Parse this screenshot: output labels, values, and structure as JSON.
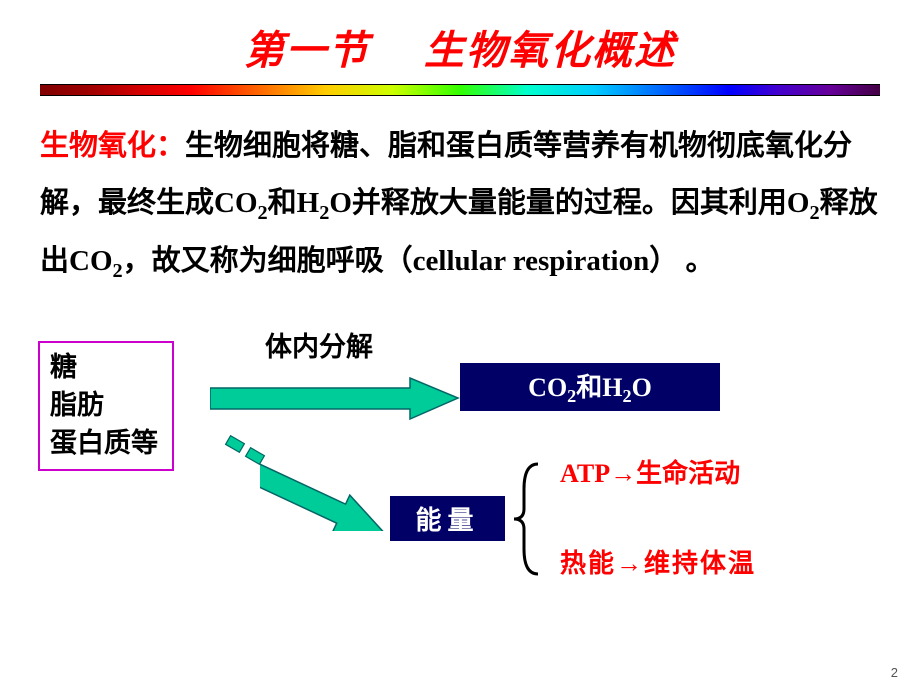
{
  "title": {
    "text": "第一节　 生物氧化概述",
    "color": "#ff0000",
    "fontsize": 40
  },
  "rainbow_bar": {
    "height": 12
  },
  "definition": {
    "term": "生物氧化：",
    "text_before_co2": "生物细胞将糖、脂和蛋白质等营养有机物彻底氧化分解，最终生成CO",
    "sub1": "2",
    "text_mid1": "和H",
    "sub2": "2",
    "text_mid2": "O并释放大量能量的过程。因其利用O",
    "sub3": "2",
    "text_mid3": "释放出CO",
    "sub4": "2",
    "text_after": "，故又称为细胞呼吸（cellular respiration） 。",
    "fontsize": 29,
    "term_color": "#ff0000"
  },
  "diagram": {
    "nutrients": {
      "line1": "糖",
      "line2": "脂肪",
      "line3": "蛋白质等",
      "fontsize": 27,
      "border_color": "#cc00cc"
    },
    "arrow_label": {
      "text": "体内分解",
      "fontsize": 27
    },
    "arrow": {
      "fill": "#00cc99",
      "stroke": "#006666"
    },
    "product_box": {
      "html": "CO<sub>2</sub>和H<sub>2</sub>O",
      "bg": "#000066",
      "fontsize": 26
    },
    "energy_box": {
      "text": "能量",
      "bg": "#000066",
      "fontsize": 26
    },
    "brace": {
      "color": "#000000"
    },
    "atp": {
      "prefix": "ATP",
      "arrow": "→",
      "suffix": "生命活动",
      "fontsize": 26
    },
    "heat": {
      "prefix": "热能",
      "arrow": "→",
      "suffix": "维持体温",
      "fontsize": 26
    }
  },
  "page_number": "2"
}
